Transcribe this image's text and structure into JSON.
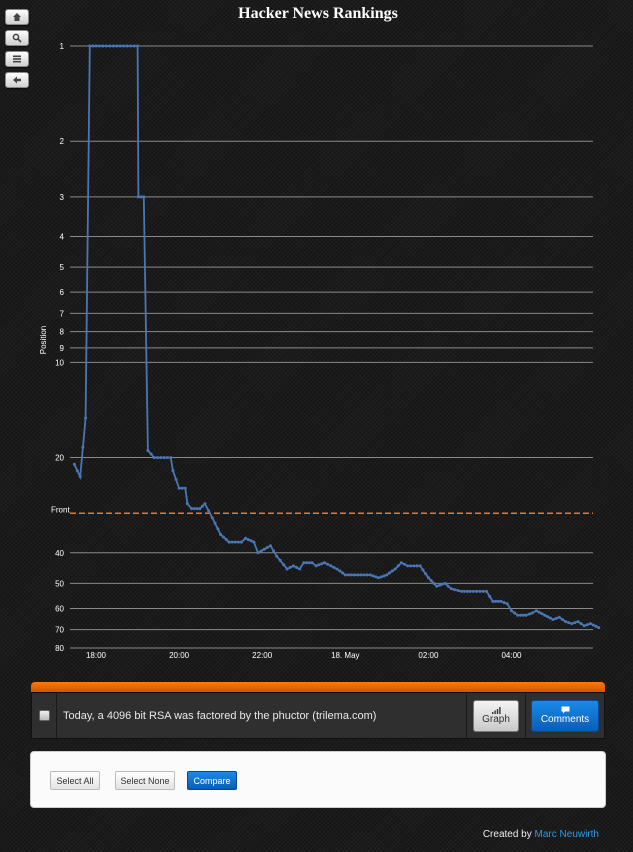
{
  "toolbar": {
    "buttons": [
      "home-icon",
      "search-icon",
      "list-icon",
      "back-arrow-icon"
    ]
  },
  "chart_data": {
    "type": "line",
    "title": "Hacker News Rankings",
    "ylabel": "Position",
    "xlabel": "",
    "y_scale": "log",
    "y_inverted": true,
    "ylim": [
      1,
      80
    ],
    "y_ticks": [
      1,
      2,
      3,
      4,
      5,
      6,
      7,
      8,
      9,
      10,
      20,
      40,
      50,
      60,
      70,
      80
    ],
    "x_tick_labels": [
      "18:00",
      "20:00",
      "22:00",
      "18. May",
      "02:00",
      "04:00"
    ],
    "x_ticks": [
      0,
      2,
      4,
      6,
      8,
      10
    ],
    "xlim": [
      -0.3,
      11.95
    ],
    "grid": true,
    "reference_line": {
      "label": "Front",
      "value": 30,
      "color": "#e07a2e"
    },
    "series_color": "#4a77b4",
    "series": [
      {
        "values": [
          [
            -0.52,
            21
          ],
          [
            -0.45,
            22
          ],
          [
            -0.38,
            23
          ],
          [
            -0.25,
            15
          ],
          [
            -0.15,
            1
          ],
          [
            0,
            1
          ],
          [
            0.5,
            1
          ],
          [
            1,
            1
          ],
          [
            1.02,
            3
          ],
          [
            1.15,
            3
          ],
          [
            1.25,
            19
          ],
          [
            1.4,
            20
          ],
          [
            1.8,
            20
          ],
          [
            1.85,
            22
          ],
          [
            2.0,
            25
          ],
          [
            2.15,
            25
          ],
          [
            2.2,
            28
          ],
          [
            2.3,
            29
          ],
          [
            2.5,
            29
          ],
          [
            2.62,
            28
          ],
          [
            2.8,
            31
          ],
          [
            3.0,
            35
          ],
          [
            3.2,
            37
          ],
          [
            3.5,
            37
          ],
          [
            3.6,
            36
          ],
          [
            3.8,
            37
          ],
          [
            3.9,
            40
          ],
          [
            4.2,
            38
          ],
          [
            4.35,
            41
          ],
          [
            4.6,
            45
          ],
          [
            4.75,
            44
          ],
          [
            4.9,
            45
          ],
          [
            5.0,
            43
          ],
          [
            5.2,
            43
          ],
          [
            5.3,
            44
          ],
          [
            5.5,
            43
          ],
          [
            5.8,
            45
          ],
          [
            6.0,
            47
          ],
          [
            6.3,
            47
          ],
          [
            6.6,
            47
          ],
          [
            6.8,
            48
          ],
          [
            7.0,
            47
          ],
          [
            7.2,
            45
          ],
          [
            7.35,
            43
          ],
          [
            7.5,
            44
          ],
          [
            7.8,
            44
          ],
          [
            8.0,
            48
          ],
          [
            8.2,
            51
          ],
          [
            8.4,
            50
          ],
          [
            8.55,
            52
          ],
          [
            8.8,
            53
          ],
          [
            9.0,
            53
          ],
          [
            9.4,
            53
          ],
          [
            9.55,
            57
          ],
          [
            9.75,
            57
          ],
          [
            9.9,
            58
          ],
          [
            10.0,
            61
          ],
          [
            10.15,
            63
          ],
          [
            10.35,
            63
          ],
          [
            10.5,
            62
          ],
          [
            10.6,
            61
          ],
          [
            10.8,
            63
          ],
          [
            11.0,
            65
          ],
          [
            11.15,
            64
          ],
          [
            11.3,
            66
          ],
          [
            11.45,
            67
          ],
          [
            11.6,
            66
          ],
          [
            11.75,
            68
          ],
          [
            11.9,
            67
          ],
          [
            12.1,
            69
          ]
        ]
      }
    ]
  },
  "story": {
    "title": "Today, a 4096 bit RSA was factored by the phuctor (trilema.com)",
    "graph_label": "Graph",
    "comments_label": "Comments"
  },
  "actions": {
    "select_all": "Select All",
    "select_none": "Select None",
    "compare": "Compare"
  },
  "footer": {
    "prefix": "Created by",
    "author": "Marc Neuwirth"
  }
}
